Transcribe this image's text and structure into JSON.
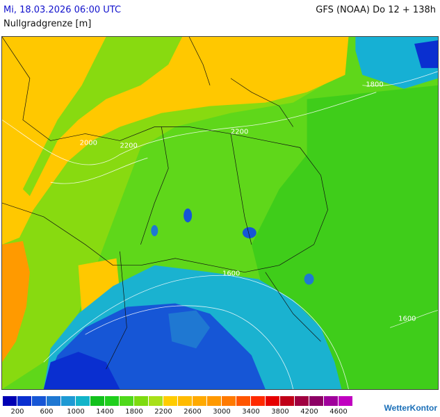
{
  "header": {
    "date_time": "Mi, 18.03.2026 06:00 UTC",
    "model_run": "GFS (NOAA) Do 12 + 138h",
    "parameter": "Nullgradgrenze [m]"
  },
  "map": {
    "contour_labels": [
      "1800",
      "2200",
      "2000",
      "2200",
      "1600",
      "1600"
    ]
  },
  "legend": {
    "colors": [
      "#0000b4",
      "#0a2fd0",
      "#1656d6",
      "#1f78d2",
      "#1e9ad4",
      "#12b4c8",
      "#12c11c",
      "#1fcf1c",
      "#4fd91b",
      "#7ddb0f",
      "#a8e019",
      "#ffcc00",
      "#ffbb00",
      "#ffaa00",
      "#ff9900",
      "#ff7a00",
      "#ff5500",
      "#ff2a00",
      "#e60000",
      "#c00018",
      "#a00040",
      "#8c0064",
      "#a0009c",
      "#c000c0"
    ],
    "tick_labels": [
      "200",
      "600",
      "1000",
      "1400",
      "1800",
      "2200",
      "2600",
      "3000",
      "3400",
      "3800",
      "4200",
      "4600"
    ]
  },
  "brand": "WetterKontor"
}
